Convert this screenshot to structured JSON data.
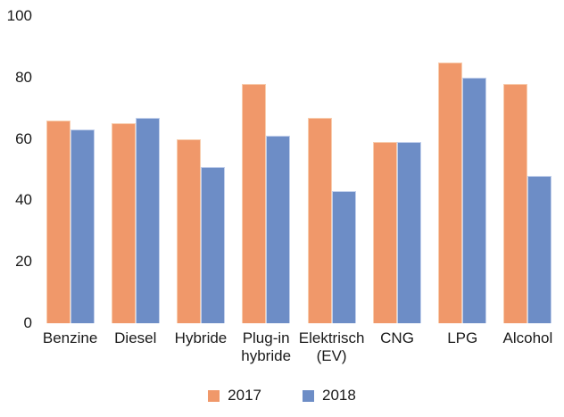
{
  "chart_data": {
    "type": "bar",
    "categories": [
      "Benzine",
      "Diesel",
      "Hybride",
      "Plug-in\nhybride",
      "Elektrisch\n(EV)",
      "CNG",
      "LPG",
      "Alcohol"
    ],
    "series": [
      {
        "name": "2017",
        "color": "#F0986A",
        "values": [
          66,
          65,
          60,
          78,
          67,
          59,
          85,
          78
        ]
      },
      {
        "name": "2018",
        "color": "#6D8DC6",
        "values": [
          63,
          67,
          51,
          61,
          43,
          59,
          80,
          48
        ]
      }
    ],
    "title": "",
    "xlabel": "",
    "ylabel": "",
    "ylim": [
      0,
      100
    ],
    "y_ticks": [
      0,
      20,
      40,
      60,
      80,
      100
    ],
    "grid": false,
    "legend_position": "bottom",
    "legend": [
      "2017",
      "2018"
    ]
  },
  "colors": {
    "series_2017": "#F0986A",
    "series_2018": "#6D8DC6",
    "text": "#1a1a1a",
    "background": "#ffffff"
  }
}
